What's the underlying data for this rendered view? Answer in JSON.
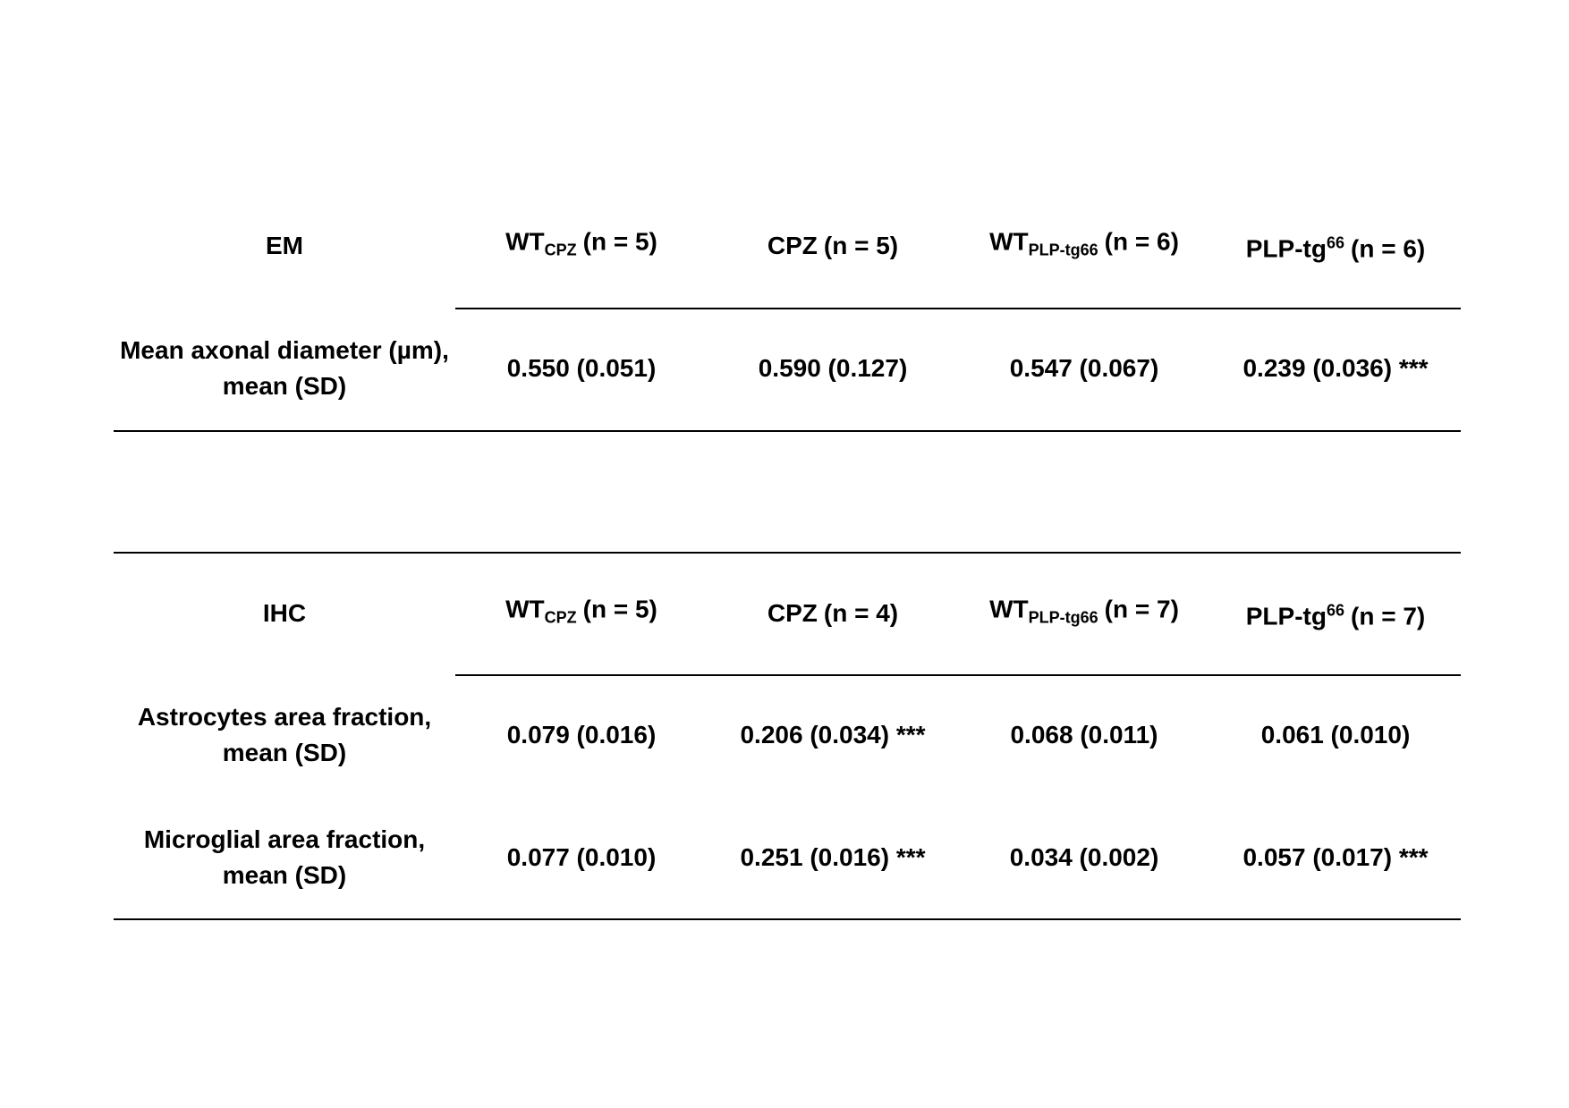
{
  "tables": [
    {
      "label": "EM",
      "columns": [
        {
          "text": "WT",
          "sub": "CPZ",
          "tail": "(n = 5)"
        },
        {
          "text": "CPZ",
          "tail": "(n = 5)"
        },
        {
          "text": "WT",
          "sub": "PLP-tg66",
          "tail": "(n = 6)"
        },
        {
          "text": "PLP-tg",
          "sup": "66",
          "tail": "(n = 6)"
        }
      ],
      "rows": [
        {
          "label": [
            "Mean axonal diameter (µm),",
            "mean (SD)"
          ],
          "values": [
            "0.550 (0.051)",
            "0.590 (0.127)",
            "0.547 (0.067)",
            "0.239 (0.036) ***"
          ]
        }
      ]
    },
    {
      "label": "IHC",
      "columns": [
        {
          "text": "WT",
          "sub": "CPZ",
          "tail": "(n = 5)"
        },
        {
          "text": "CPZ",
          "tail": "(n = 4)"
        },
        {
          "text": "WT",
          "sub": "PLP-tg66",
          "tail": "(n = 7)"
        },
        {
          "text": "PLP-tg",
          "sup": "66",
          "tail": "(n = 7)"
        }
      ],
      "rows": [
        {
          "label": [
            "Astrocytes area fraction,",
            "mean (SD)"
          ],
          "values": [
            "0.079 (0.016)",
            "0.206 (0.034) ***",
            "0.068 (0.011)",
            "0.061 (0.010)"
          ]
        },
        {
          "label": [
            "Microglial area fraction,",
            "mean (SD)"
          ],
          "values": [
            "0.077 (0.010)",
            "0.251 (0.016) ***",
            "0.034 (0.002)",
            "0.057 (0.017) ***"
          ]
        }
      ]
    }
  ]
}
